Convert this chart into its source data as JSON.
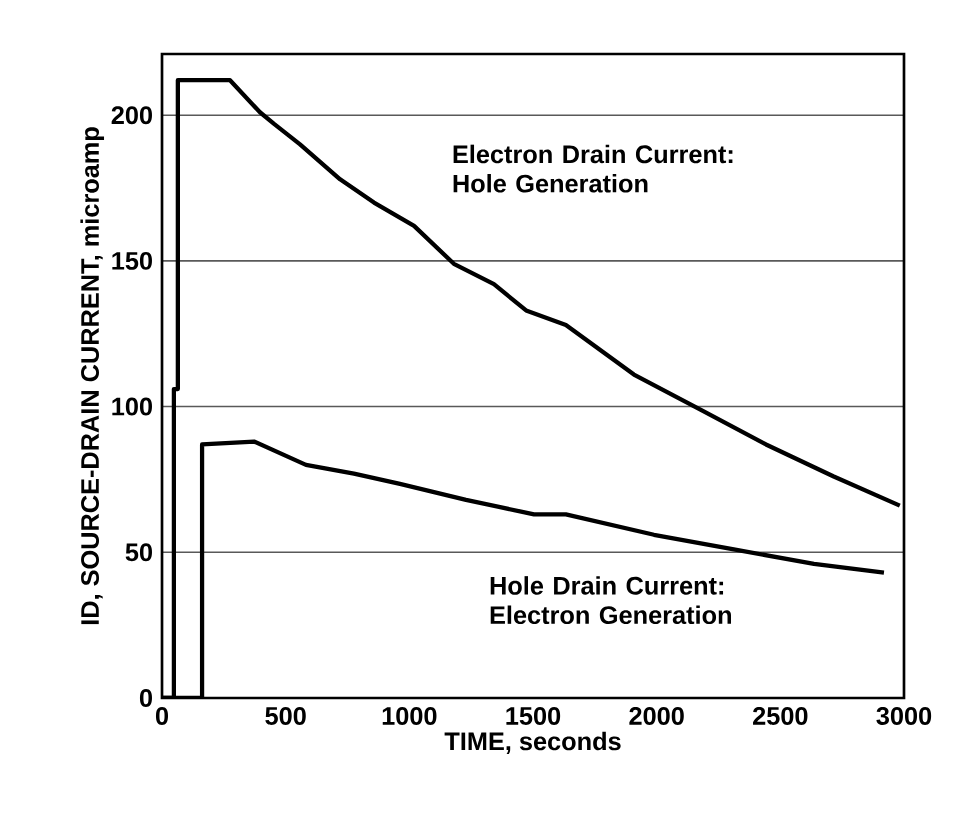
{
  "chart_data": {
    "type": "line",
    "xlabel": "TIME, seconds",
    "ylabel": "ID, SOURCE-DRAIN CURRENT, microamp",
    "xlim": [
      0,
      3000
    ],
    "ylim": [
      0,
      221
    ],
    "xticks": [
      0,
      500,
      1000,
      1500,
      2000,
      2500,
      3000
    ],
    "yticks": [
      0,
      50,
      100,
      150,
      200
    ],
    "grid": "y",
    "marker": "none",
    "legend": false,
    "series": [
      {
        "name": "Electron Drain Current: Hole Generation",
        "color": "#000000",
        "x": [
          0,
          48,
          48,
          64,
          64,
          275,
          396,
          453,
          558,
          720,
          857,
          1019,
          1180,
          1342,
          1472,
          1633,
          1908,
          2175,
          2442,
          2716,
          2983
        ],
        "values": [
          0,
          0,
          106,
          106,
          212,
          212,
          201,
          197,
          190,
          178,
          170,
          162,
          149,
          142,
          133,
          128,
          111,
          99,
          87,
          76,
          66
        ]
      },
      {
        "name": "Hole Drain Current: Electron Generation",
        "color": "#000000",
        "x": [
          0,
          162,
          162,
          372,
          582,
          776,
          962,
          1229,
          1504,
          1633,
          1989,
          2312,
          2636,
          2919
        ],
        "values": [
          0,
          0,
          87,
          88,
          80,
          77,
          73.5,
          68,
          63,
          63,
          56,
          51,
          46,
          43
        ]
      }
    ]
  }
}
